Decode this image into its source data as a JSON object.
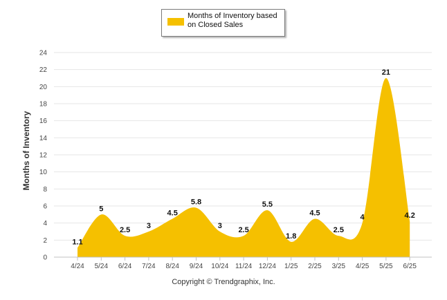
{
  "chart_data": {
    "type": "area",
    "categories": [
      "4/24",
      "5/24",
      "6/24",
      "7/24",
      "8/24",
      "9/24",
      "10/24",
      "11/24",
      "12/24",
      "1/25",
      "2/25",
      "3/25",
      "4/25",
      "5/25",
      "6/25"
    ],
    "series": [
      {
        "name": "Months of Inventory based on Closed Sales",
        "values": [
          1.1,
          5,
          2.5,
          3,
          4.5,
          5.8,
          3,
          2.5,
          5.5,
          1.8,
          4.5,
          2.5,
          4,
          21,
          4.2
        ],
        "labels": [
          "1.1",
          "5",
          "2.5",
          "3",
          "4.5",
          "5.8",
          "3",
          "2.5",
          "5.5",
          "1.8",
          "4.5",
          "2.5",
          "4",
          "21",
          "4.2"
        ]
      }
    ],
    "ylabel": "Months of Inventory",
    "xlabel": "",
    "ylim": [
      0,
      24
    ],
    "yticks": [
      0,
      2,
      4,
      6,
      8,
      10,
      12,
      14,
      16,
      18,
      20,
      22,
      24
    ],
    "grid": true,
    "legend": "top-center",
    "color": "#f5c000"
  },
  "legend": {
    "label_line1": "Months of Inventory based",
    "label_line2": "on Closed Sales"
  },
  "footer": {
    "copyright": "Copyright © Trendgraphix, Inc."
  }
}
